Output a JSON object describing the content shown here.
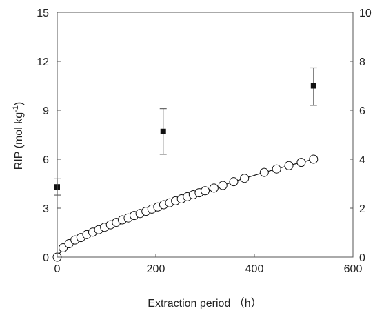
{
  "chart_data": {
    "type": "scatter",
    "xlabel": "Extraction period （h）",
    "ylabel": "RIP (mol kg",
    "ylabel_sup": "-1",
    "ylabel_end": ")",
    "xlim": [
      0,
      600
    ],
    "ylim": [
      0,
      15
    ],
    "y2lim": [
      0,
      10
    ],
    "xticks": [
      "0",
      "200",
      "400",
      "600"
    ],
    "yticks": [
      "0",
      "3",
      "6",
      "9",
      "12",
      "15"
    ],
    "y2ticks": [
      "0",
      "2",
      "4",
      "6",
      "8",
      "10"
    ],
    "grid": false,
    "legend": "none",
    "series": [
      {
        "marker": "filled-square",
        "axis": "left",
        "color": "#111111",
        "x": [
          0,
          215,
          520
        ],
        "y": [
          4.3,
          7.7,
          10.5
        ],
        "err_low": [
          3.8,
          6.3,
          9.3
        ],
        "err_high": [
          4.8,
          9.1,
          11.6
        ]
      },
      {
        "marker": "open-circle",
        "axis": "right",
        "color": "#111111",
        "connected": true,
        "x": [
          0,
          12,
          24,
          36,
          48,
          60,
          72,
          84,
          96,
          108,
          120,
          132,
          144,
          156,
          168,
          180,
          192,
          204,
          216,
          228,
          240,
          252,
          264,
          276,
          288,
          300,
          318,
          336,
          358,
          380,
          420,
          445,
          470,
          495,
          520
        ],
        "y": [
          0,
          0.38,
          0.55,
          0.7,
          0.8,
          0.92,
          1.02,
          1.12,
          1.22,
          1.32,
          1.42,
          1.52,
          1.6,
          1.7,
          1.78,
          1.87,
          1.96,
          2.05,
          2.14,
          2.22,
          2.3,
          2.38,
          2.47,
          2.55,
          2.63,
          2.71,
          2.82,
          2.93,
          3.08,
          3.22,
          3.46,
          3.6,
          3.74,
          3.87,
          4.0
        ]
      }
    ]
  }
}
